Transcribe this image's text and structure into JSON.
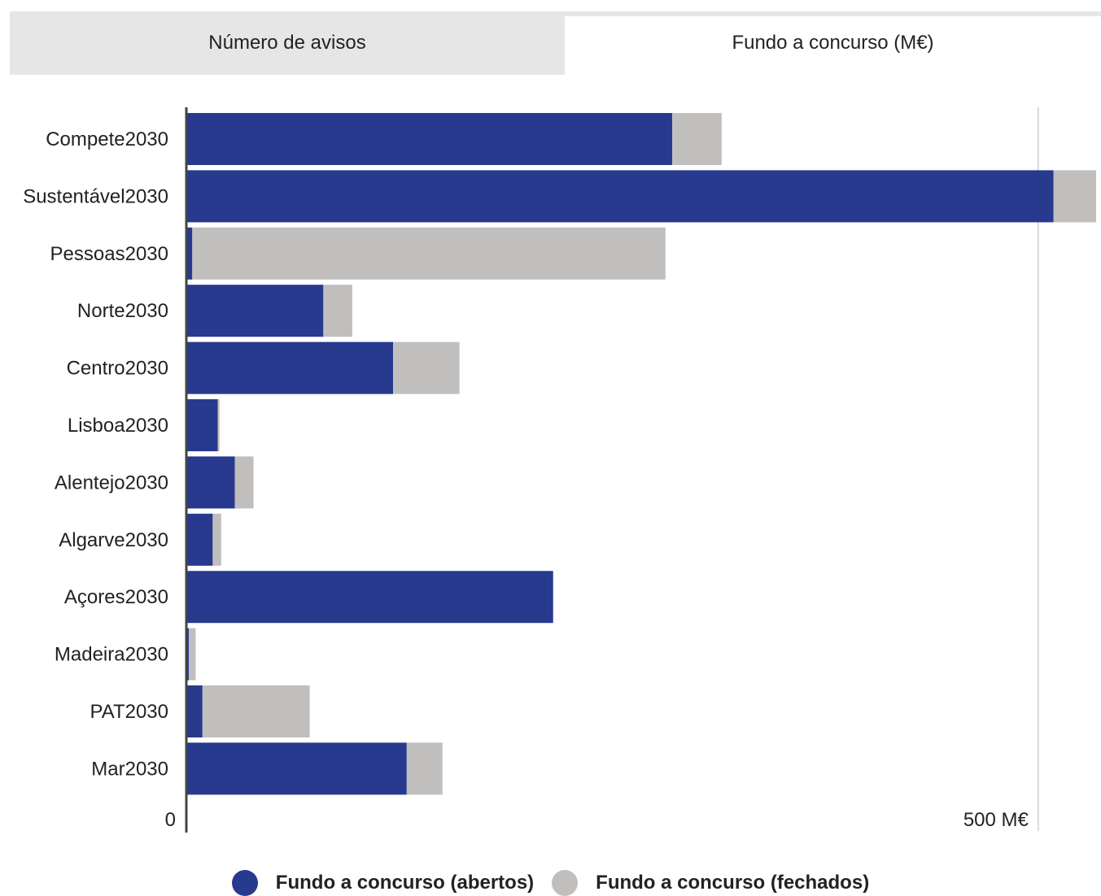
{
  "tabs": [
    {
      "label": "Número de avisos",
      "active": false
    },
    {
      "label": "Fundo a concurso (M€)",
      "active": true
    }
  ],
  "colors": {
    "abertos": "#283a8e",
    "fechados": "#c0bfbe",
    "axis": "#444444",
    "gridline": "#d9d9d9"
  },
  "chart_data": {
    "type": "bar",
    "orientation": "horizontal",
    "stacked": true,
    "categories": [
      "Compete2030",
      "Sustentável2030",
      "Pessoas2030",
      "Norte2030",
      "Centro2030",
      "Lisboa2030",
      "Alentejo2030",
      "Algarve2030",
      "Açores2030",
      "Madeira2030",
      "PAT2030",
      "Mar2030"
    ],
    "series": [
      {
        "name": "Fundo a concurso (abertos)",
        "values": [
          285,
          509,
          3,
          80,
          121,
          18,
          28,
          15,
          215,
          1,
          9,
          129
        ]
      },
      {
        "name": "Fundo a concurso (fechados)",
        "values": [
          29,
          25,
          278,
          17,
          39,
          1,
          11,
          5,
          0,
          4,
          63,
          21
        ]
      }
    ],
    "x_ticks": [
      {
        "value": 0,
        "label": "0"
      },
      {
        "value": 500,
        "label": "500 M€"
      }
    ],
    "xlim": [
      0,
      534
    ],
    "grid": false,
    "legend": "bottom"
  }
}
